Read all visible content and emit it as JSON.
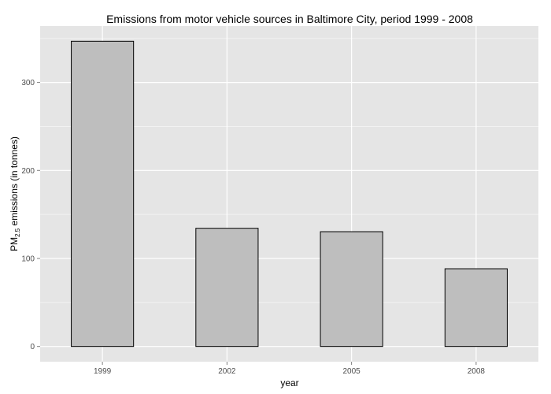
{
  "chart_data": {
    "type": "bar",
    "title": "Emissions from motor vehicle sources in Baltimore City, period 1999 - 2008",
    "xlabel": "year",
    "ylabel": {
      "prefix": "PM",
      "subscript": "2.5",
      "suffix": " emissions (in tonnes)"
    },
    "categories": [
      "1999",
      "2002",
      "2005",
      "2008"
    ],
    "values": [
      346.8,
      134.3,
      130.4,
      88.3
    ],
    "ylim": [
      -17.3,
      364.1
    ],
    "yticks": [
      0,
      100,
      200,
      300
    ],
    "grid": true,
    "legend": "none",
    "colors": {
      "panel_background": "#e5e5e5",
      "grid_major": "#ffffff",
      "grid_minor": "#f2f2f2",
      "bar_fill": "#bebebe",
      "bar_outline": "#000000",
      "tick_text": "#4d4d4d"
    }
  }
}
